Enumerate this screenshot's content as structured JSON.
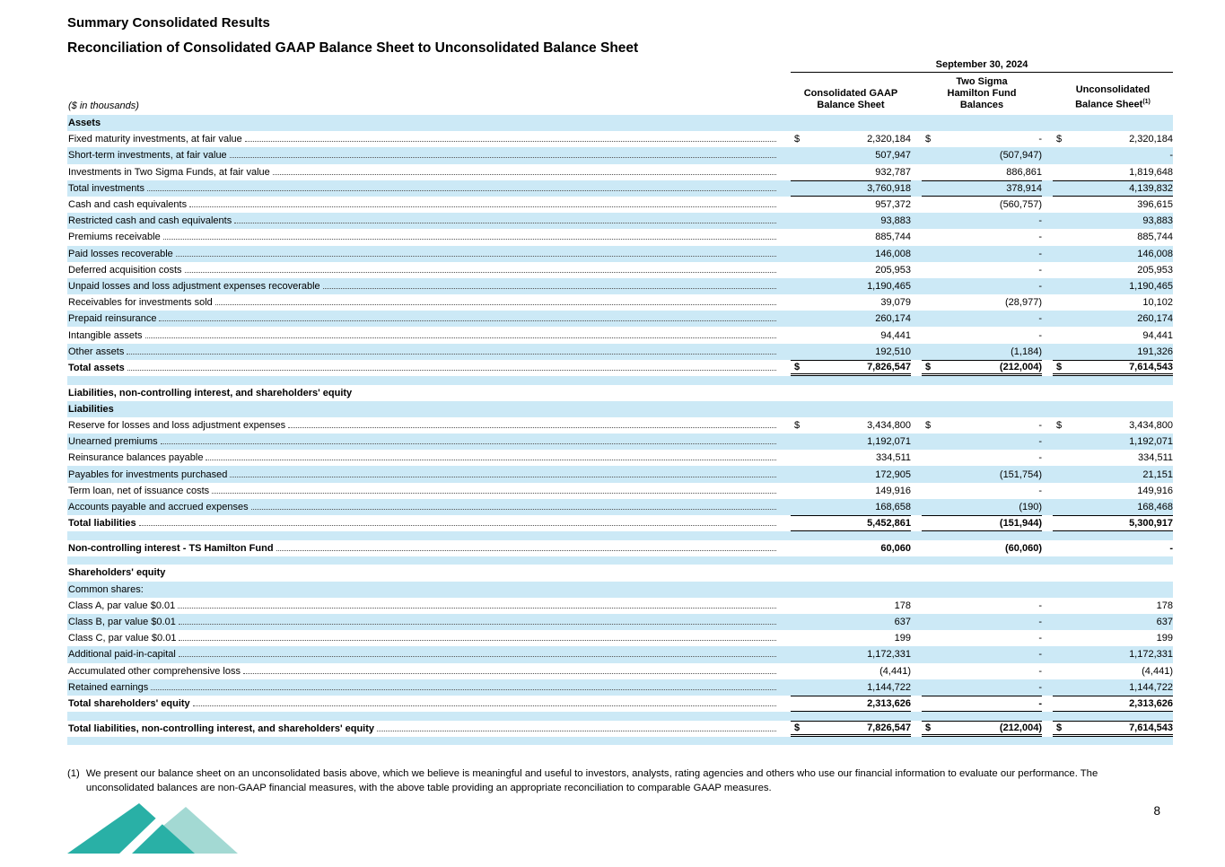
{
  "page": {
    "title": "Summary Consolidated Results",
    "subtitle": "Reconciliation of Consolidated GAAP Balance Sheet to Unconsolidated Balance Sheet",
    "page_number": "8",
    "footnote": {
      "marker": "(1)",
      "text": "We present our balance sheet on an unconsolidated basis above, which we believe is meaningful and useful to investors, analysts, rating agencies and others who use our financial information to evaluate our performance. The unconsolidated balances are non-GAAP financial measures, with the above table providing an appropriate reconciliation to comparable GAAP measures."
    },
    "colors": {
      "stripe": "#cce9f6",
      "logo_dark_teal": "#29b0a6",
      "logo_light_teal": "#a3d9d3"
    }
  },
  "table": {
    "units_label": "($ in thousands)",
    "date_header": "September 30, 2024",
    "columns": [
      {
        "lines": "Consolidated GAAP\nBalance Sheet",
        "sup": ""
      },
      {
        "lines": "Two Sigma\nHamilton Fund\nBalances",
        "sup": ""
      },
      {
        "lines": "Unconsolidated\nBalance Sheet",
        "sup": "(1)"
      }
    ],
    "rows": [
      {
        "label": "Assets",
        "sec": true,
        "bold": true
      },
      {
        "label": "Fixed maturity investments, at fair value",
        "v": [
          "2,320,184",
          "-",
          "2,320,184"
        ],
        "d": true,
        "dots": true
      },
      {
        "label": "Short-term investments, at fair value",
        "v": [
          "507,947",
          "(507,947)",
          "-"
        ],
        "dots": true
      },
      {
        "label": "Investments in Two Sigma Funds, at fair value",
        "v": [
          "932,787",
          "886,861",
          "1,819,648"
        ],
        "dots": true
      },
      {
        "label": "Total investments",
        "v": [
          "3,760,918",
          "378,914",
          "4,139,832"
        ],
        "dots": true,
        "vt": true,
        "vb": true
      },
      {
        "label": "Cash and cash equivalents",
        "v": [
          "957,372",
          "(560,757)",
          "396,615"
        ],
        "dots": true
      },
      {
        "label": "Restricted cash and cash equivalents",
        "v": [
          "93,883",
          "-",
          "93,883"
        ],
        "dots": true
      },
      {
        "label": "Premiums receivable",
        "v": [
          "885,744",
          "-",
          "885,744"
        ],
        "dots": true
      },
      {
        "label": "Paid losses recoverable",
        "v": [
          "146,008",
          "-",
          "146,008"
        ],
        "dots": true
      },
      {
        "label": "Deferred acquisition costs",
        "v": [
          "205,953",
          "-",
          "205,953"
        ],
        "dots": true
      },
      {
        "label": "Unpaid losses and loss adjustment expenses recoverable",
        "v": [
          "1,190,465",
          "-",
          "1,190,465"
        ],
        "dots": true
      },
      {
        "label": "Receivables for investments sold",
        "v": [
          "39,079",
          "(28,977)",
          "10,102"
        ],
        "dots": true
      },
      {
        "label": "Prepaid reinsurance",
        "v": [
          "260,174",
          "-",
          "260,174"
        ],
        "dots": true
      },
      {
        "label": "Intangible assets",
        "v": [
          "94,441",
          "-",
          "94,441"
        ],
        "dots": true
      },
      {
        "label": "Other assets",
        "v": [
          "192,510",
          "(1,184)",
          "191,326"
        ],
        "dots": true
      },
      {
        "label": "Total assets",
        "v": [
          "7,826,547",
          "(212,004)",
          "7,614,543"
        ],
        "d": true,
        "bold": true,
        "dots": true,
        "vt": true,
        "vd": true
      },
      {
        "sp": true
      },
      {
        "label": "Liabilities, non-controlling interest, and shareholders' equity",
        "sec": true,
        "bold": true
      },
      {
        "label": "Liabilities",
        "sec": true,
        "bold": true
      },
      {
        "label": "Reserve for losses and loss adjustment expenses",
        "v": [
          "3,434,800",
          "-",
          "3,434,800"
        ],
        "d": true,
        "dots": true
      },
      {
        "label": "Unearned premiums",
        "v": [
          "1,192,071",
          "-",
          "1,192,071"
        ],
        "dots": true
      },
      {
        "label": "Reinsurance balances payable",
        "v": [
          "334,511",
          "-",
          "334,511"
        ],
        "dots": true
      },
      {
        "label": "Payables for investments purchased",
        "v": [
          "172,905",
          "(151,754)",
          "21,151"
        ],
        "dots": true
      },
      {
        "label": "Term loan, net of issuance costs",
        "v": [
          "149,916",
          "-",
          "149,916"
        ],
        "dots": true
      },
      {
        "label": "Accounts payable and accrued expenses",
        "v": [
          "168,658",
          "(190)",
          "168,468"
        ],
        "dots": true
      },
      {
        "label": "Total liabilities",
        "v": [
          "5,452,861",
          "(151,944)",
          "5,300,917"
        ],
        "bold": true,
        "dots": true,
        "vt": true,
        "vb": true
      },
      {
        "sp": true
      },
      {
        "label": "Non-controlling interest - TS Hamilton Fund",
        "v": [
          "60,060",
          "(60,060)",
          "-"
        ],
        "bold": true,
        "dots": true
      },
      {
        "sp": true
      },
      {
        "label": "Shareholders' equity",
        "sec": true,
        "bold": true
      },
      {
        "label": "Common shares:",
        "sec": true
      },
      {
        "label": "Class A, par value $0.01",
        "v": [
          "178",
          "-",
          "178"
        ],
        "dots": true
      },
      {
        "label": "Class B, par value $0.01",
        "v": [
          "637",
          "-",
          "637"
        ],
        "dots": true
      },
      {
        "label": "Class C, par value $0.01",
        "v": [
          "199",
          "-",
          "199"
        ],
        "dots": true
      },
      {
        "label": "Additional paid-in-capital",
        "v": [
          "1,172,331",
          "-",
          "1,172,331"
        ],
        "dots": true
      },
      {
        "label": "Accumulated other comprehensive loss",
        "v": [
          "(4,441)",
          "-",
          "(4,441)"
        ],
        "dots": true
      },
      {
        "label": "Retained earnings",
        "v": [
          "1,144,722",
          "-",
          "1,144,722"
        ],
        "dots": true
      },
      {
        "label": "Total shareholders' equity",
        "v": [
          "2,313,626",
          "-",
          "2,313,626"
        ],
        "bold": true,
        "dots": true,
        "vt": true,
        "vb": true
      },
      {
        "sp": true
      },
      {
        "label": "Total liabilities, non-controlling interest, and shareholders' equity",
        "v": [
          "7,826,547",
          "(212,004)",
          "7,614,543"
        ],
        "d": true,
        "bold": true,
        "dots": true,
        "vt": true,
        "vd": true
      },
      {
        "sp": true
      }
    ]
  }
}
